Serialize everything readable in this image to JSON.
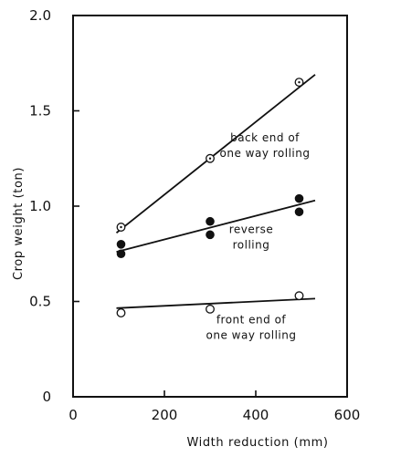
{
  "chart_data": {
    "type": "scatter",
    "xlabel": "Width reduction (mm)",
    "ylabel": "Crop weight (ton)",
    "xlim": [
      0,
      600
    ],
    "ylim": [
      0,
      2.0
    ],
    "x_ticks": [
      "0",
      "200",
      "400",
      "600"
    ],
    "y_ticks": [
      "0",
      "0.5",
      "1.0",
      "1.5",
      "2.0"
    ],
    "grid": false,
    "series": [
      {
        "marker": "circle-dot",
        "points": [
          [
            105,
            0.89
          ],
          [
            300,
            1.25
          ],
          [
            495,
            1.65
          ]
        ],
        "fit": [
          [
            95,
            0.86
          ],
          [
            530,
            1.69
          ]
        ]
      },
      {
        "marker": "filled-circle",
        "points": [
          [
            105,
            0.8
          ],
          [
            105,
            0.75
          ],
          [
            300,
            0.92
          ],
          [
            300,
            0.85
          ],
          [
            495,
            1.04
          ],
          [
            495,
            0.97
          ]
        ],
        "fit": [
          [
            95,
            0.76
          ],
          [
            530,
            1.03
          ]
        ]
      },
      {
        "marker": "open-circle",
        "points": [
          [
            105,
            0.44
          ],
          [
            300,
            0.46
          ],
          [
            495,
            0.53
          ]
        ],
        "fit": [
          [
            95,
            0.465
          ],
          [
            530,
            0.515
          ]
        ]
      }
    ],
    "annotations": [
      {
        "lines": [
          "back end of",
          "one way rolling"
        ],
        "anchor_x": 420,
        "anchor_y": 1.34
      },
      {
        "lines": [
          "reverse",
          "rolling"
        ],
        "anchor_x": 390,
        "anchor_y": 0.86
      },
      {
        "lines": [
          "front end of",
          "one way rolling"
        ],
        "anchor_x": 390,
        "anchor_y": 0.385
      }
    ]
  }
}
